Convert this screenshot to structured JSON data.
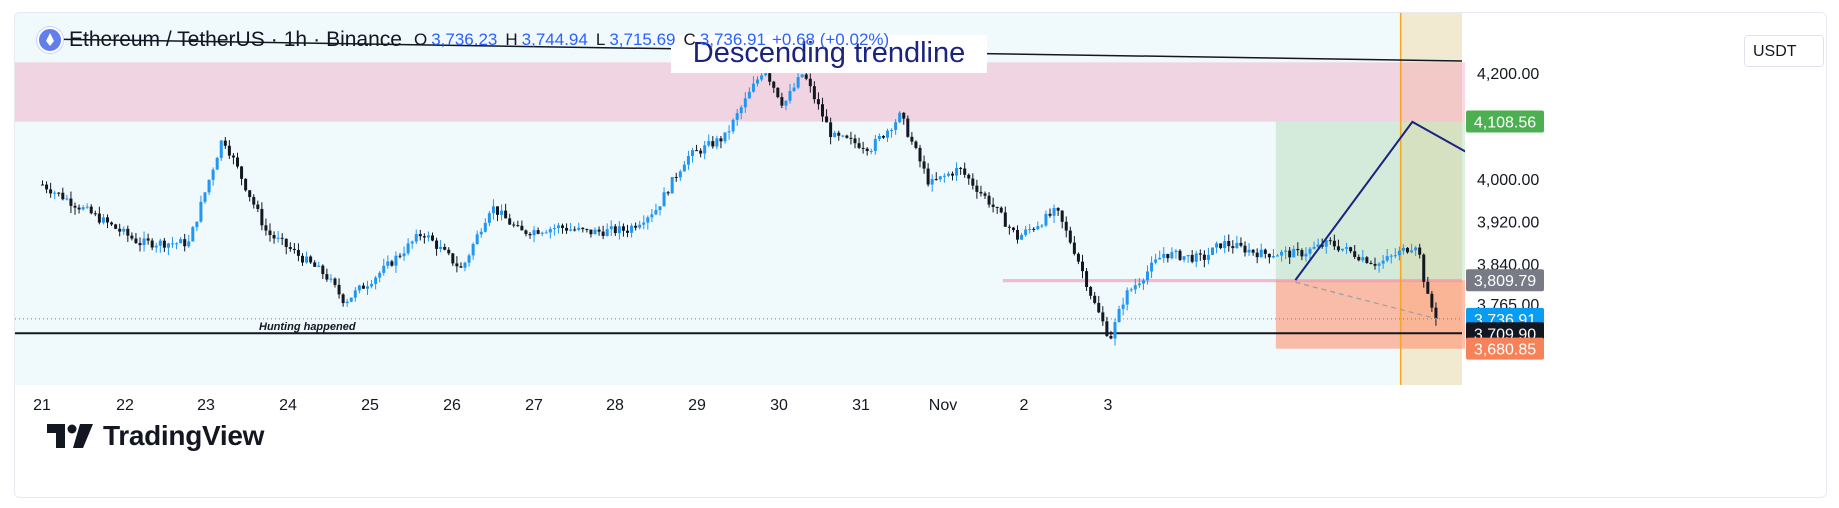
{
  "header": {
    "symbol": "Ethereum / TetherUS",
    "interval": "1h",
    "exchange": "Binance",
    "ohlc": [
      {
        "k": "O",
        "v": "3,736.23"
      },
      {
        "k": "H",
        "v": "3,744.94"
      },
      {
        "k": "L",
        "v": "3,715.69"
      },
      {
        "k": "C",
        "v": "3,736.91"
      }
    ],
    "change": "+0.68 (+0.02%)",
    "logo_icon": "ethereum-icon"
  },
  "currency_button": "USDT",
  "branding": "TradingView",
  "colors": {
    "up": "#2196f3",
    "down": "#131722",
    "price_label": "#089cf2",
    "target_label": "#4caf50",
    "stop_label": "#f7825a",
    "trendline": "#1a237e"
  },
  "chart_data": {
    "type": "candlestick",
    "symbol": "ETHUSDT",
    "interval": "1h",
    "x_ticks": [
      "21",
      "22",
      "23",
      "24",
      "25",
      "26",
      "27",
      "28",
      "29",
      "30",
      "31",
      "Nov",
      "2",
      "3"
    ],
    "y_ticks": [
      "4,200.00",
      "4,000.00",
      "3,920.00",
      "3,840.00",
      "3,765.00"
    ],
    "ylim": [
      3640,
      4240
    ],
    "price_labels": [
      {
        "value": "4,108.56",
        "color": "#4caf50"
      },
      {
        "value": "3,809.79",
        "color": "#787b86"
      },
      {
        "value": "3,736.91",
        "color": "#089cf2"
      },
      {
        "value": "3,709.90",
        "color": "#131722"
      },
      {
        "value": "3,680.85",
        "color": "#f7825a"
      }
    ],
    "path": [
      [
        20.0,
        3990
      ],
      [
        21.0,
        3880
      ],
      [
        21.5,
        3880
      ],
      [
        21.85,
        4080
      ],
      [
        22.3,
        3900
      ],
      [
        22.6,
        3860
      ],
      [
        22.9,
        3820
      ],
      [
        23.1,
        3770
      ],
      [
        23.5,
        3830
      ],
      [
        23.9,
        3900
      ],
      [
        24.3,
        3830
      ],
      [
        24.6,
        3950
      ],
      [
        24.9,
        3900
      ],
      [
        25.3,
        3910
      ],
      [
        25.6,
        3900
      ],
      [
        26.0,
        3905
      ],
      [
        26.3,
        3945
      ],
      [
        26.6,
        4040
      ],
      [
        27.0,
        4080
      ],
      [
        27.4,
        4210
      ],
      [
        27.6,
        4140
      ],
      [
        27.8,
        4200
      ],
      [
        28.1,
        4080
      ],
      [
        28.5,
        4060
      ],
      [
        28.8,
        4120
      ],
      [
        29.1,
        3990
      ],
      [
        29.4,
        4020
      ],
      [
        29.7,
        3960
      ],
      [
        30.0,
        3890
      ],
      [
        30.4,
        3940
      ],
      [
        30.6,
        3860
      ],
      [
        30.8,
        3760
      ],
      [
        30.95,
        3700
      ],
      [
        31.1,
        3780
      ],
      [
        31.5,
        3860
      ],
      [
        31.9,
        3850
      ],
      [
        32.1,
        3880
      ],
      [
        32.5,
        3860
      ],
      [
        32.9,
        3860
      ],
      [
        33.2,
        3880
      ],
      [
        33.7,
        3840
      ],
      [
        34.1,
        3880
      ],
      [
        34.2,
        3780
      ],
      [
        34.3,
        3737
      ]
    ],
    "annotations": [
      {
        "text": "Descending trendline",
        "type": "trendline",
        "from": [
          20.0,
          4250
        ],
        "to": [
          37.9,
          4220
        ]
      },
      {
        "text": "Hunting happened",
        "type": "label",
        "x": 23.6,
        "y": 3712
      },
      {
        "type": "horizontal_line",
        "y": 3709.9
      },
      {
        "type": "resistance_zone",
        "from_x": 20.0,
        "to_x": 37.3,
        "y_top": 4220,
        "y_bottom": 4108.56
      },
      {
        "type": "support_zone",
        "from_x": 29.85,
        "to_x": 37.9,
        "y_top": 3812,
        "y_bottom": 3806
      },
      {
        "type": "long_position",
        "from_x": 32.65,
        "to_x": 36.1,
        "entry": 3809.79,
        "target": 4108.56,
        "stop": 3680.85
      },
      {
        "type": "projection_arrow",
        "points": [
          [
            32.85,
            3810
          ],
          [
            34.05,
            4108
          ],
          [
            35.15,
            3995
          ]
        ]
      },
      {
        "type": "dashed_line",
        "from": [
          32.85,
          3806
        ],
        "to": [
          34.3,
          3737
        ]
      },
      {
        "type": "vertical_line",
        "x": 33.93
      },
      {
        "type": "highlight_zone",
        "from_x": 33.93,
        "to_x": 38.2
      }
    ]
  }
}
